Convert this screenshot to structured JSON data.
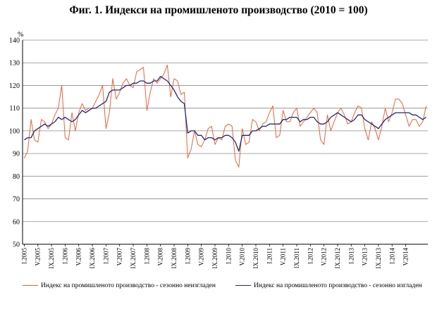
{
  "title": "Фиг. 1. Индекси на промишленото производство (2010 = 100)",
  "chart_data": {
    "type": "line",
    "ylabel": "%",
    "ylim": [
      50,
      140
    ],
    "yticks": [
      50,
      60,
      70,
      80,
      90,
      100,
      110,
      120,
      130,
      140
    ],
    "grid": "horizontal",
    "legend": "bottom",
    "xtick_labels": [
      "I.2005",
      "V.2005",
      "IX.2005",
      "I.2006",
      "V.2006",
      "IX.2006",
      "I.2007",
      "V.2007",
      "IX.2007",
      "I.2008",
      "V.2008",
      "IX.2008",
      "I.2009",
      "V.2009",
      "IX.2009",
      "I.2010",
      "V.2010",
      "IX.2010",
      "I.2011",
      "V.2011",
      "IX.2011",
      "I.2012",
      "V.2012",
      "IX.2012",
      "I.2013",
      "V.2013",
      "IX.2013",
      "I.2014",
      "V.2014"
    ],
    "series": [
      {
        "name": "Индекс на промишленото производство - сезонно  неизгладен",
        "color": "#e8643c",
        "values": [
          88,
          91,
          105,
          96,
          95,
          105,
          104,
          101,
          103,
          107,
          110,
          120,
          97,
          96,
          108,
          100,
          108,
          112,
          109,
          110,
          110,
          113,
          116,
          120,
          101,
          108,
          123,
          114,
          117,
          121,
          123,
          120,
          119,
          126,
          127,
          128,
          109,
          117,
          123,
          121,
          123,
          125,
          129,
          115,
          123,
          122,
          116,
          117,
          88,
          92,
          100,
          94,
          93,
          96,
          101,
          102,
          94,
          97,
          96,
          102,
          103,
          102,
          87,
          84,
          101,
          94,
          95,
          105,
          104,
          100,
          103,
          104,
          108,
          111,
          97,
          98,
          109,
          104,
          104,
          108,
          110,
          102,
          104,
          106,
          108,
          110,
          108,
          96,
          94,
          107,
          100,
          104,
          108,
          110,
          107,
          103,
          104,
          108,
          111,
          110,
          101,
          96,
          104,
          101,
          96,
          102,
          110,
          104,
          108,
          114,
          114,
          112,
          107,
          102,
          105,
          105,
          102,
          104,
          111
        ],
        "line_width": 1
      },
      {
        "name": "Индекс на промишленото производство - сезонно изгладен",
        "color": "#1f2a7a",
        "values": [
          96,
          97,
          97,
          100,
          101,
          102,
          103,
          102,
          103,
          104,
          106,
          105,
          106,
          105,
          104,
          105,
          107,
          109,
          108,
          109,
          110,
          110,
          111,
          112,
          113,
          117,
          118,
          118,
          118,
          119,
          120,
          120,
          121,
          121,
          122,
          122,
          121,
          121,
          122,
          122,
          124,
          123,
          122,
          120,
          118,
          115,
          113,
          112,
          99,
          100,
          100,
          98,
          98,
          96,
          97,
          97,
          96,
          97,
          97,
          98,
          98,
          97,
          95,
          91,
          98,
          98,
          98,
          100,
          100,
          101,
          102,
          102,
          103,
          103,
          103,
          103,
          105,
          105,
          106,
          106,
          106,
          104,
          105,
          105,
          106,
          106,
          104,
          103,
          103,
          104,
          106,
          107,
          108,
          107,
          106,
          105,
          104,
          105,
          107,
          107,
          105,
          104,
          103,
          102,
          101,
          103,
          105,
          106,
          107,
          108,
          108,
          108,
          108,
          108,
          107,
          107,
          106,
          105,
          106
        ],
        "line_width": 1.3
      }
    ]
  }
}
